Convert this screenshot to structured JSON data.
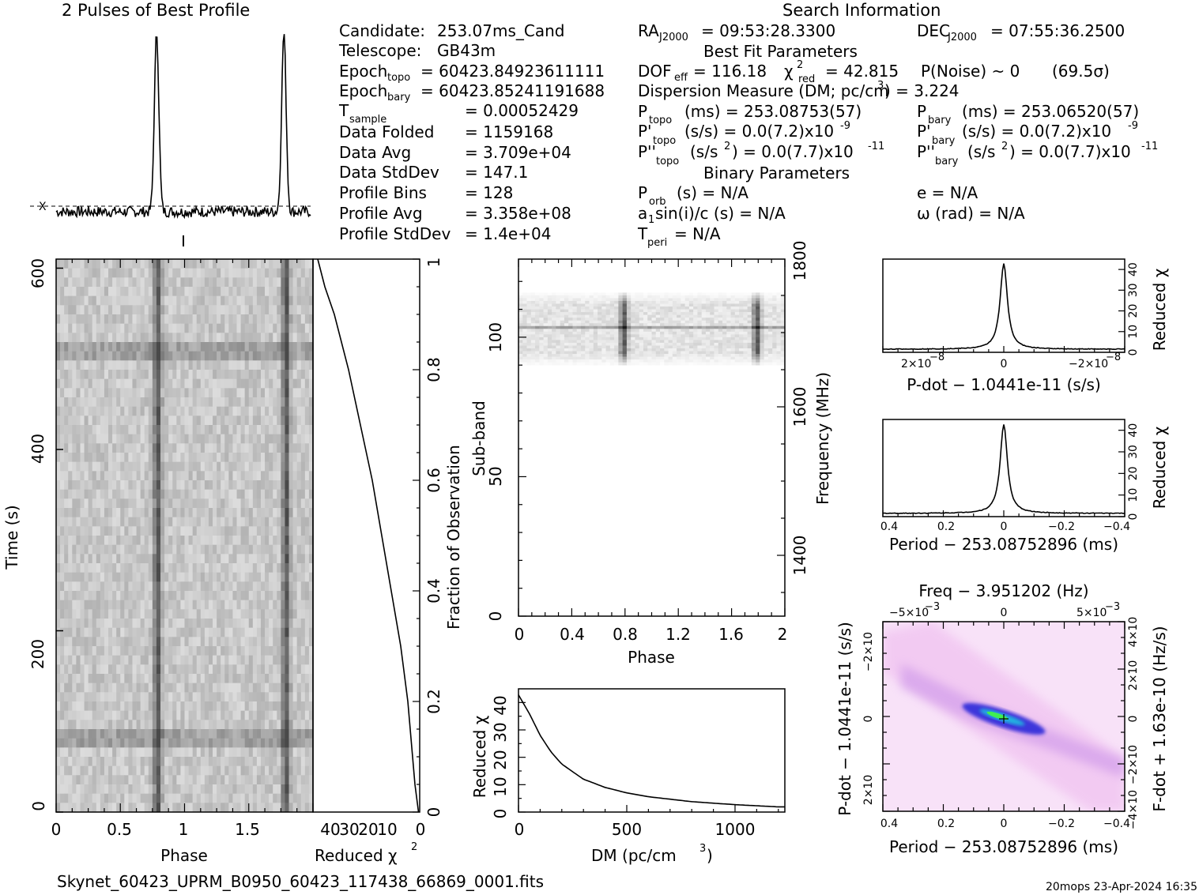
{
  "header": {
    "profile_title": "2 Pulses of Best Profile",
    "search_title": "Search Information",
    "best_fit_title": "Best Fit Parameters",
    "binary_title": "Binary Parameters"
  },
  "info_left": {
    "candidate_label": "Candidate:",
    "candidate": "253.07ms_Cand",
    "telescope_label": "Telescope:",
    "telescope": "GB43m",
    "epoch_label": "Epoch",
    "epoch_topo_sub": "topo",
    "epoch_topo": "= 60423.84923611111",
    "epoch_bary_sub": "bary",
    "epoch_bary": "= 60423.85241191688",
    "tsample_label": "T",
    "tsample_sub": "sample",
    "tsample": "= 0.00052429",
    "folded_label": "Data Folded",
    "folded": "= 1159168",
    "avg_label": "Data Avg",
    "avg": "= 3.709e+04",
    "std_label": "Data StdDev",
    "std": "= 147.1",
    "bins_label": "Profile Bins",
    "bins": "= 128",
    "pavg_label": "Profile Avg",
    "pavg": "= 3.358e+08",
    "pstd_label": "Profile StdDev",
    "pstd": "= 1.4e+04"
  },
  "info_right": {
    "ra_label": "RA",
    "ra_sub": "J2000",
    "ra": "= 09:53:28.3300",
    "dec_label": "DEC",
    "dec_sub": "J2000",
    "dec": "= 07:55:36.2500",
    "dof_label": "DOF",
    "dof_sub": "eff",
    "dof": "= 116.18",
    "chi_sym": "χ",
    "chi_sup": "2",
    "chi_sub": "red",
    "chi": "= 42.815",
    "pnoise": "P(Noise) ~ 0",
    "sigma": "(69.5σ)",
    "dm_text": "Dispersion Measure (DM; pc/cm",
    "dm_sup": "3",
    "dm_val": ") = 3.224",
    "ptopo_label": "P",
    "ptopo_sub": "topo",
    "ptopo": "(ms) =  253.08753(57)",
    "pbary_label": "P",
    "pbary_sub": "bary",
    "pbary": "(ms) =  253.06520(57)",
    "pdtopo_label": "P'",
    "pdtopo": "(s/s) = 0.0(7.2)x10",
    "pdtopo_exp": "-9",
    "pdbary_label": "P'",
    "pdbary": "(s/s) = 0.0(7.2)x10",
    "pdbary_exp": "-9",
    "pddtopo_label": "P''",
    "pddtopo_a": "(s/s",
    "pddtopo_sq": "2",
    "pddtopo_b": ") = 0.0(7.7)x10",
    "pddtopo_exp": "-11",
    "pddbary_label": "P''",
    "pddbary_a": "(s/s",
    "pddbary_sq": "2",
    "pddbary_b": ") = 0.0(7.7)x10",
    "pddbary_exp": "-11",
    "porb_label": "P",
    "porb_sub": "orb",
    "porb": "(s) = N/A",
    "ecc": "e = N/A",
    "a1_a": "a",
    "a1_sub": "1",
    "a1_b": "sin(i)/c (s) = N/A",
    "omega": "ω (rad) = N/A",
    "tperi_label": "T",
    "tperi_sub": "peri",
    "tperi": "= N/A"
  },
  "footer": {
    "filename": "Skynet_60423_UPRM_B0950_60423_117438_66869_0001.fits",
    "stamp": "20mops 23-Apr-2024 16:35"
  },
  "axes": {
    "time_label": "Time (s)",
    "phase_label": "Phase",
    "redchi_label": "Reduced χ",
    "redchi_sup": "2",
    "frac_label": "Fraction of Observation",
    "subband_label": "Sub-band",
    "freq_label": "Frequency (MHz)",
    "dm_label": "DM (pc/cm",
    "dm_sup": "3",
    "dm_close": ")",
    "pdot_label": "P-dot − 1.0441e-11 (s/s)",
    "period_label": "Period − 253.08752896 (ms)",
    "freq_top_label": "Freq − 3.951202 (Hz)",
    "fdot_label": "F-dot + 1.63e-10 (Hz/s)",
    "pdot_vlabel": "P-dot − 1.0441e-11 (s/s)"
  },
  "ticks": {
    "time_y": [
      "0",
      "200",
      "400",
      "600"
    ],
    "phase_x": [
      "0",
      "0.5",
      "1",
      "1.5"
    ],
    "redchi_x": [
      "40",
      "30",
      "20",
      "10",
      "0"
    ],
    "frac_y": [
      "0",
      "0.2",
      "0.4",
      "0.6",
      "0.8",
      "1"
    ],
    "subband_y": [
      "0",
      "50",
      "100"
    ],
    "phase2_x": [
      "0",
      "0.4",
      "0.8",
      "1.2",
      "1.6",
      "2"
    ],
    "freq_y": [
      "1400",
      "1600",
      "1800"
    ],
    "dm_x": [
      "0",
      "500",
      "1000"
    ],
    "dmchi_y": [
      "0",
      "10",
      "20",
      "30",
      "40"
    ],
    "pdot_x": [
      "2×10",
      "0",
      "−2×10"
    ],
    "pdot_x_exp": "−8",
    "chi_small_y": [
      "0",
      "10",
      "20",
      "30",
      "40"
    ],
    "period_x": [
      "0.4",
      "0.2",
      "0",
      "−0.2",
      "−0.4"
    ],
    "freq_top_x": [
      "−5×10",
      "0",
      "5×10"
    ],
    "freq_top_exp": "−3",
    "pp_y": [
      "2×10",
      "0",
      "−2×10"
    ],
    "pp_y_exp": "−8",
    "fdot_y": [
      "−4×10",
      "−2×10",
      "0",
      "2×10",
      "4×10"
    ],
    "fdot_y_exp": "−9"
  },
  "chart_data": [
    {
      "type": "line",
      "name": "profile",
      "title": "2 Pulses of Best Profile",
      "x": [
        0,
        0.8,
        1.0,
        1.8,
        2.0
      ],
      "peaks_phase": [
        0.79,
        1.79
      ],
      "peak_width": 0.025,
      "baseline_level": 0.05,
      "peak_level": 1.0
    },
    {
      "type": "heatmap",
      "name": "time-phase",
      "xlabel": "Phase",
      "ylabel": "Time (s)",
      "xlim": [
        0,
        2
      ],
      "ylim": [
        0,
        610
      ],
      "pulse_phase": [
        0.79,
        1.79
      ],
      "bright_rows_time": [
        85,
        505
      ]
    },
    {
      "type": "line",
      "name": "redchi-vs-fraction",
      "xlabel": "Reduced χ2",
      "ylabel": "Fraction of Observation",
      "xlim": [
        45,
        0
      ],
      "ylim": [
        0,
        1
      ],
      "fraction": [
        0,
        0.05,
        0.1,
        0.2,
        0.3,
        0.4,
        0.5,
        0.6,
        0.7,
        0.8,
        0.9,
        0.95,
        1.0
      ],
      "redchi": [
        0.5,
        2,
        3,
        5,
        8,
        12,
        16,
        20,
        25,
        30,
        36,
        40,
        43
      ]
    },
    {
      "type": "heatmap",
      "name": "subband-phase",
      "xlabel": "Phase",
      "ylabel": "Sub-band",
      "xlim": [
        0,
        2
      ],
      "ylim": [
        0,
        128
      ],
      "active_subbands": [
        90,
        116
      ],
      "pulse_phase": [
        0.79,
        1.79
      ],
      "freq_ticks_mhz": [
        1400,
        1600,
        1800
      ]
    },
    {
      "type": "line",
      "name": "dm-chi",
      "xlabel": "DM (pc/cm3)",
      "ylabel": "Reduced χ2",
      "xlim": [
        0,
        1230
      ],
      "ylim": [
        0,
        45
      ],
      "x": [
        0,
        50,
        100,
        150,
        200,
        300,
        400,
        500,
        600,
        800,
        1000,
        1200
      ],
      "y": [
        42.8,
        36,
        28,
        22,
        17.5,
        12,
        9,
        7,
        5.6,
        3.8,
        2.7,
        1.9
      ]
    },
    {
      "type": "line",
      "name": "pdot-chi",
      "xlabel": "P-dot − 1.0441e-11 (s/s)",
      "ylabel": "Reduced χ2",
      "peak": 42.8,
      "baseline": 1.5
    },
    {
      "type": "line",
      "name": "period-chi",
      "xlabel": "Period − 253.08752896 (ms)",
      "ylabel": "Reduced χ2",
      "xlim": [
        0.4,
        -0.4
      ],
      "ylim": [
        0,
        45
      ],
      "peak": 42.8,
      "baseline": 1.5
    },
    {
      "type": "heatmap",
      "name": "period-pdot",
      "xlabel": "Period − 253.08752896 (ms)",
      "ylabel": "P-dot − 1.0441e-11 (s/s)",
      "top_label": "Freq − 3.951202 (Hz)",
      "right_label": "F-dot + 1.63e-10 (Hz/s)",
      "xlim": [
        0.4,
        -0.4
      ]
    }
  ],
  "colors": {
    "ink": "#000000",
    "pp_bg": "#f4c8f4",
    "pp_blue": "#2020d8",
    "pp_green": "#30e030"
  }
}
